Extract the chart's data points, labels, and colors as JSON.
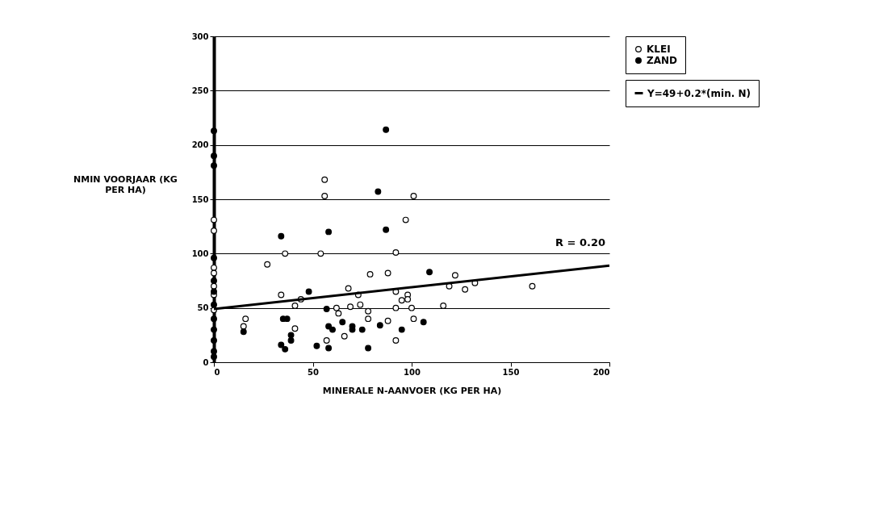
{
  "chart_data": {
    "type": "scatter",
    "xlabel": "MINERALE N-AANVOER (KG PER HA)",
    "ylabel": "NMIN VOORJAAR (KG PER HA)",
    "xlim": [
      0,
      200
    ],
    "xticks": [
      0,
      50,
      100,
      150,
      200
    ],
    "ylim": [
      0,
      300
    ],
    "yticks": [
      0,
      50,
      100,
      150,
      200,
      250,
      300
    ],
    "grid": "y",
    "legend": "right",
    "marker": "circle",
    "annotations": [
      "R = 0.20"
    ],
    "series": [
      {
        "name": "KLEI",
        "color": "#ffffff",
        "x": [
          56,
          56,
          101,
          97,
          36,
          54,
          92,
          27,
          79,
          88,
          34,
          44,
          41,
          62,
          63,
          69,
          68,
          74,
          73,
          78,
          78,
          88,
          92,
          92,
          95,
          98,
          98,
          100,
          101,
          92,
          57,
          66,
          41,
          16,
          15,
          119,
          122,
          127,
          132,
          116,
          161,
          0,
          0,
          0,
          0,
          0,
          0,
          0
        ],
        "values": [
          168,
          153,
          153,
          131,
          100,
          100,
          101,
          90,
          81,
          82,
          62,
          58,
          52,
          50,
          45,
          51,
          68,
          53,
          62,
          47,
          40,
          38,
          65,
          50,
          57,
          62,
          58,
          50,
          40,
          20,
          20,
          24,
          31,
          40,
          33,
          70,
          80,
          67,
          73,
          52,
          70,
          131,
          121,
          87,
          82,
          70,
          62,
          48
        ]
      },
      {
        "name": "ZAND",
        "color": "#000000",
        "x": [
          0,
          0,
          0,
          0,
          0,
          0,
          0,
          0,
          0,
          0,
          0,
          0,
          87,
          83,
          34,
          58,
          87,
          109,
          48,
          35,
          37,
          15,
          39,
          39,
          34,
          36,
          52,
          58,
          57,
          58,
          60,
          65,
          70,
          70,
          75,
          78,
          84,
          95,
          106
        ],
        "values": [
          213,
          190,
          181,
          96,
          75,
          65,
          53,
          40,
          30,
          20,
          10,
          5,
          214,
          157,
          116,
          120,
          122,
          83,
          65,
          40,
          40,
          28,
          25,
          20,
          16,
          12,
          15,
          13,
          49,
          33,
          30,
          37,
          30,
          33,
          30,
          13,
          34,
          30,
          37
        ]
      },
      {
        "name": "Y=49+0.2*(min. N)",
        "type": "line",
        "marker": "none",
        "color": "#000000",
        "x": [
          0,
          200
        ],
        "values": [
          49,
          89
        ]
      }
    ]
  }
}
